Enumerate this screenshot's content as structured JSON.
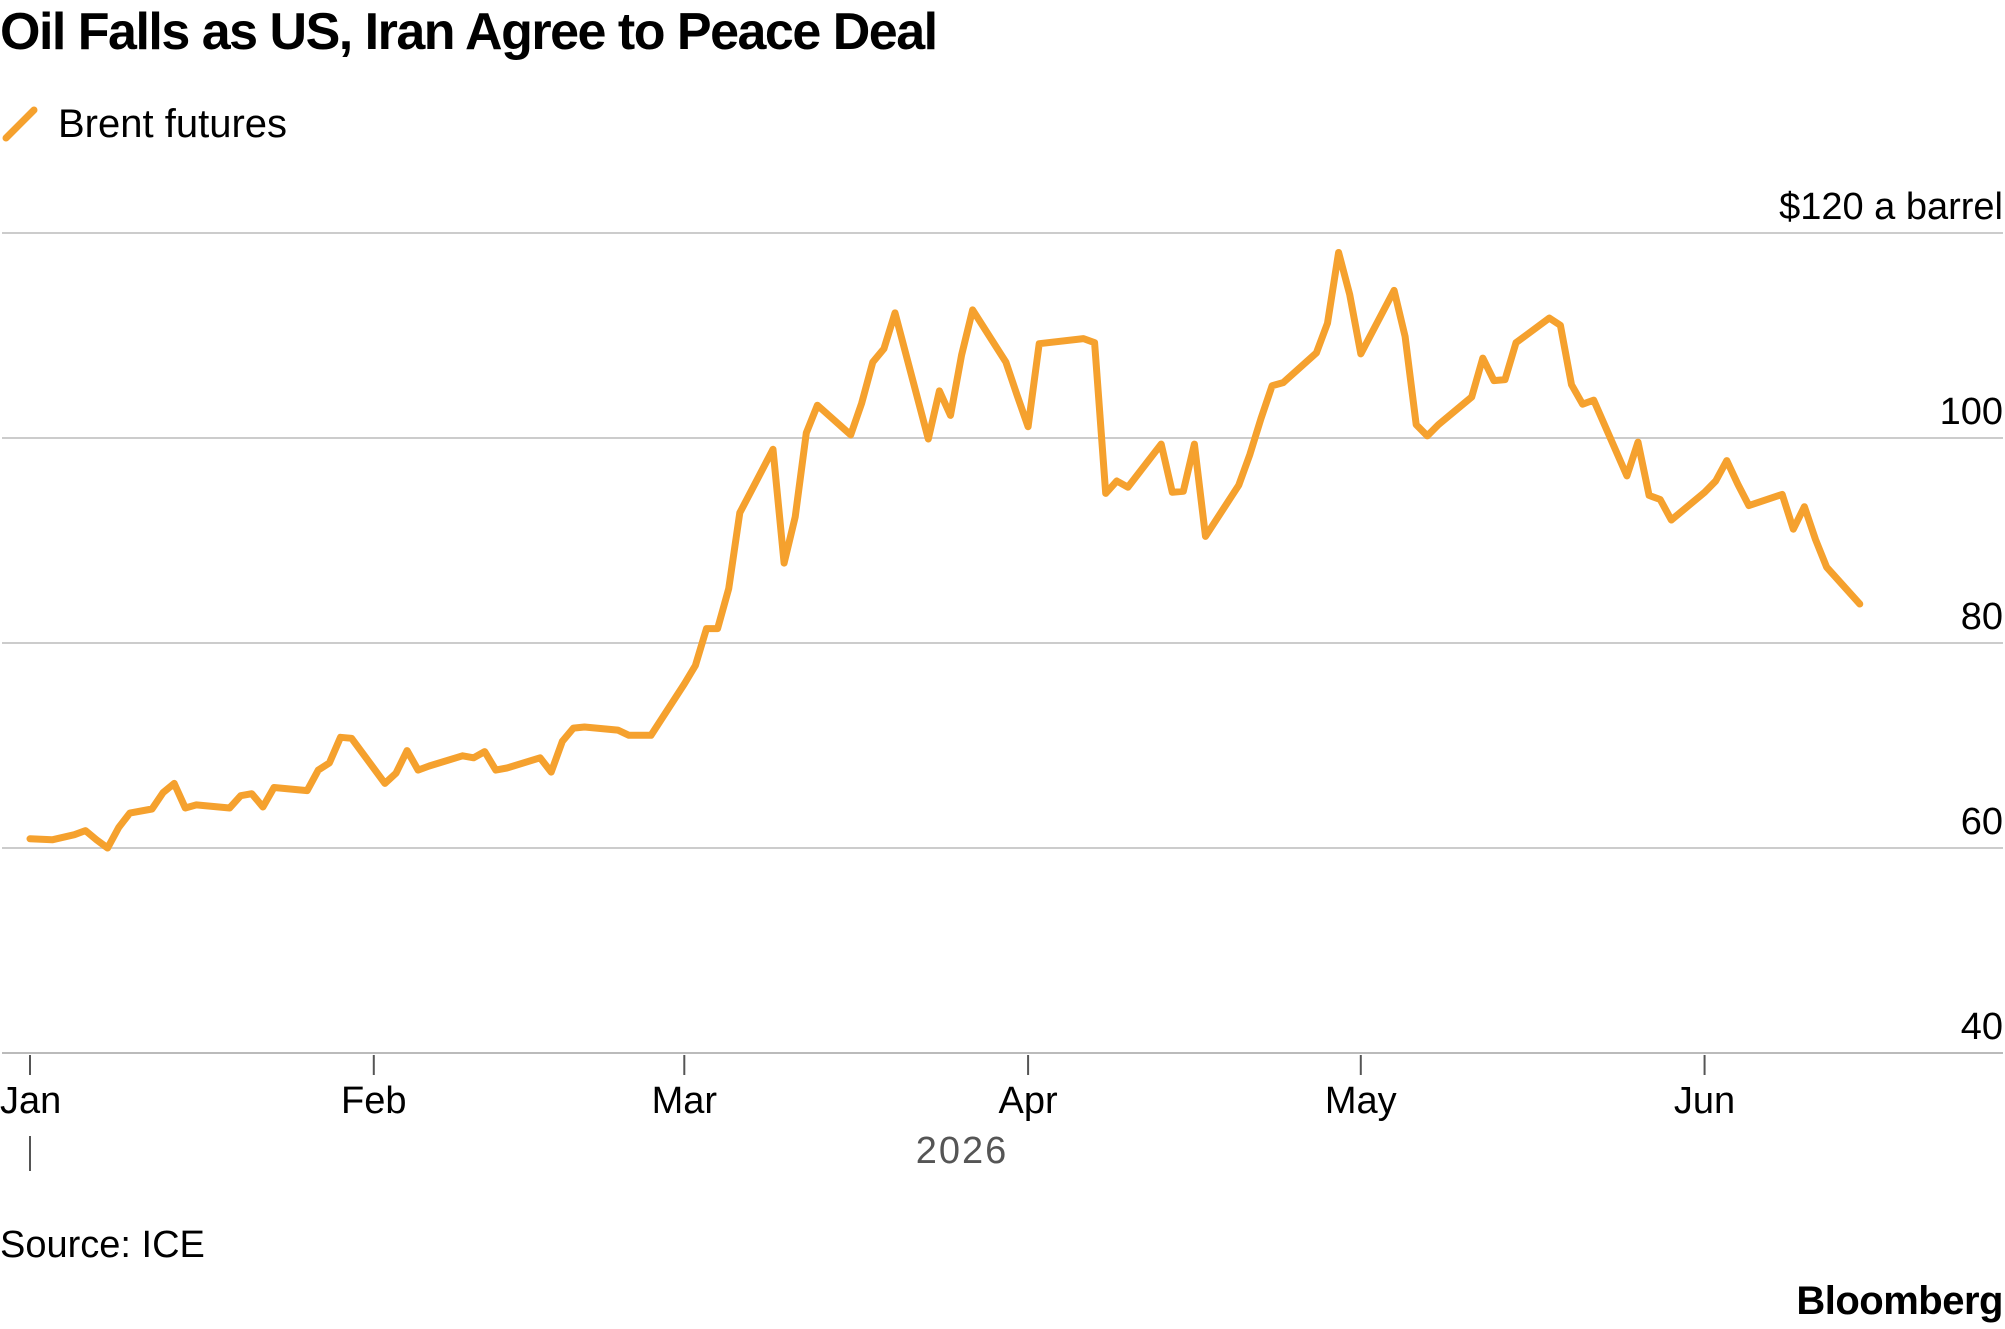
{
  "title": "Oil Falls as US, Iran Agree to Peace Deal",
  "source": "Source: ICE",
  "brand": "Bloomberg",
  "colors": {
    "series": "#F5A12E",
    "grid": "#cccccc",
    "axis": "#bbbbbb",
    "text": "#000000",
    "year_text": "#555555"
  },
  "chart_data": {
    "type": "line",
    "title": "Oil Falls as US, Iran Agree to Peace Deal",
    "ylabel": "$120 a barrel",
    "y_tick_labels": [
      "$120 a barrel",
      "100",
      "80",
      "60",
      "40"
    ],
    "y_ticks": [
      120,
      100,
      80,
      60,
      40
    ],
    "ylim": [
      40,
      120
    ],
    "xlim": [
      "2026-01-01",
      "2026-06-29"
    ],
    "x_tick_labels": [
      "Jan",
      "Feb",
      "Mar",
      "Apr",
      "May",
      "Jun"
    ],
    "x_ticks": [
      "2026-01-01",
      "2026-02-01",
      "2026-03-01",
      "2026-04-01",
      "2026-05-01",
      "2026-06-01"
    ],
    "x_year_label": "2026",
    "grid": true,
    "legend": "top-left",
    "series": [
      {
        "name": "Brent futures",
        "color": "#F5A12E",
        "points": [
          [
            "2026-01-01",
            60.9
          ],
          [
            "2026-01-03",
            60.8
          ],
          [
            "2026-01-05",
            61.3
          ],
          [
            "2026-01-06",
            61.7
          ],
          [
            "2026-01-07",
            60.8
          ],
          [
            "2026-01-08",
            60.0
          ],
          [
            "2026-01-09",
            62.0
          ],
          [
            "2026-01-10",
            63.4
          ],
          [
            "2026-01-12",
            63.8
          ],
          [
            "2026-01-13",
            65.4
          ],
          [
            "2026-01-14",
            66.3
          ],
          [
            "2026-01-15",
            63.9
          ],
          [
            "2026-01-16",
            64.2
          ],
          [
            "2026-01-19",
            63.9
          ],
          [
            "2026-01-20",
            65.1
          ],
          [
            "2026-01-21",
            65.3
          ],
          [
            "2026-01-22",
            64.0
          ],
          [
            "2026-01-23",
            65.9
          ],
          [
            "2026-01-26",
            65.6
          ],
          [
            "2026-01-27",
            67.6
          ],
          [
            "2026-01-28",
            68.3
          ],
          [
            "2026-01-29",
            70.8
          ],
          [
            "2026-01-30",
            70.7
          ],
          [
            "2026-02-02",
            66.3
          ],
          [
            "2026-02-03",
            67.3
          ],
          [
            "2026-02-04",
            69.5
          ],
          [
            "2026-02-05",
            67.6
          ],
          [
            "2026-02-06",
            68.0
          ],
          [
            "2026-02-09",
            69.0
          ],
          [
            "2026-02-10",
            68.8
          ],
          [
            "2026-02-11",
            69.4
          ],
          [
            "2026-02-12",
            67.6
          ],
          [
            "2026-02-13",
            67.8
          ],
          [
            "2026-02-16",
            68.8
          ],
          [
            "2026-02-17",
            67.4
          ],
          [
            "2026-02-18",
            70.4
          ],
          [
            "2026-02-19",
            71.7
          ],
          [
            "2026-02-20",
            71.8
          ],
          [
            "2026-02-23",
            71.5
          ],
          [
            "2026-02-24",
            71.0
          ],
          [
            "2026-02-26",
            71.0
          ],
          [
            "2026-03-01",
            76.0
          ],
          [
            "2026-03-02",
            77.8
          ],
          [
            "2026-03-03",
            81.4
          ],
          [
            "2026-03-04",
            81.4
          ],
          [
            "2026-03-05",
            85.3
          ],
          [
            "2026-03-06",
            92.7
          ],
          [
            "2026-03-09",
            98.9
          ],
          [
            "2026-03-10",
            87.8
          ],
          [
            "2026-03-11",
            92.3
          ],
          [
            "2026-03-12",
            100.5
          ],
          [
            "2026-03-13",
            103.2
          ],
          [
            "2026-03-16",
            100.3
          ],
          [
            "2026-03-17",
            103.4
          ],
          [
            "2026-03-18",
            107.4
          ],
          [
            "2026-03-19",
            108.7
          ],
          [
            "2026-03-20",
            112.2
          ],
          [
            "2026-03-23",
            99.9
          ],
          [
            "2026-03-24",
            104.6
          ],
          [
            "2026-03-25",
            102.2
          ],
          [
            "2026-03-26",
            108.1
          ],
          [
            "2026-03-27",
            112.5
          ],
          [
            "2026-03-30",
            107.4
          ],
          [
            "2026-03-31",
            104.2
          ],
          [
            "2026-04-01",
            101.1
          ],
          [
            "2026-04-02",
            109.2
          ],
          [
            "2026-04-06",
            109.7
          ],
          [
            "2026-04-07",
            109.3
          ],
          [
            "2026-04-08",
            94.6
          ],
          [
            "2026-04-09",
            95.8
          ],
          [
            "2026-04-10",
            95.2
          ],
          [
            "2026-04-13",
            99.4
          ],
          [
            "2026-04-14",
            94.7
          ],
          [
            "2026-04-15",
            94.8
          ],
          [
            "2026-04-16",
            99.4
          ],
          [
            "2026-04-17",
            90.4
          ],
          [
            "2026-04-20",
            95.4
          ],
          [
            "2026-04-21",
            98.4
          ],
          [
            "2026-04-22",
            101.9
          ],
          [
            "2026-04-23",
            105.1
          ],
          [
            "2026-04-24",
            105.4
          ],
          [
            "2026-04-27",
            108.3
          ],
          [
            "2026-04-28",
            111.2
          ],
          [
            "2026-04-29",
            118.1
          ],
          [
            "2026-04-30",
            114.0
          ],
          [
            "2026-05-01",
            108.2
          ],
          [
            "2026-05-04",
            114.4
          ],
          [
            "2026-05-05",
            109.9
          ],
          [
            "2026-05-06",
            101.3
          ],
          [
            "2026-05-07",
            100.2
          ],
          [
            "2026-05-08",
            101.3
          ],
          [
            "2026-05-11",
            104.0
          ],
          [
            "2026-05-12",
            107.8
          ],
          [
            "2026-05-13",
            105.6
          ],
          [
            "2026-05-14",
            105.7
          ],
          [
            "2026-05-15",
            109.3
          ],
          [
            "2026-05-18",
            111.7
          ],
          [
            "2026-05-19",
            111.0
          ],
          [
            "2026-05-20",
            105.2
          ],
          [
            "2026-05-21",
            103.3
          ],
          [
            "2026-05-22",
            103.7
          ],
          [
            "2026-05-25",
            96.3
          ],
          [
            "2026-05-26",
            99.6
          ],
          [
            "2026-05-27",
            94.4
          ],
          [
            "2026-05-28",
            94.0
          ],
          [
            "2026-05-29",
            92.0
          ],
          [
            "2026-06-01",
            94.7
          ],
          [
            "2026-06-02",
            95.8
          ],
          [
            "2026-06-03",
            97.8
          ],
          [
            "2026-06-04",
            95.5
          ],
          [
            "2026-06-05",
            93.4
          ],
          [
            "2026-06-08",
            94.5
          ],
          [
            "2026-06-09",
            91.1
          ],
          [
            "2026-06-10",
            93.3
          ],
          [
            "2026-06-11",
            90.1
          ],
          [
            "2026-06-12",
            87.4
          ],
          [
            "2026-06-15",
            83.8
          ]
        ]
      }
    ]
  }
}
